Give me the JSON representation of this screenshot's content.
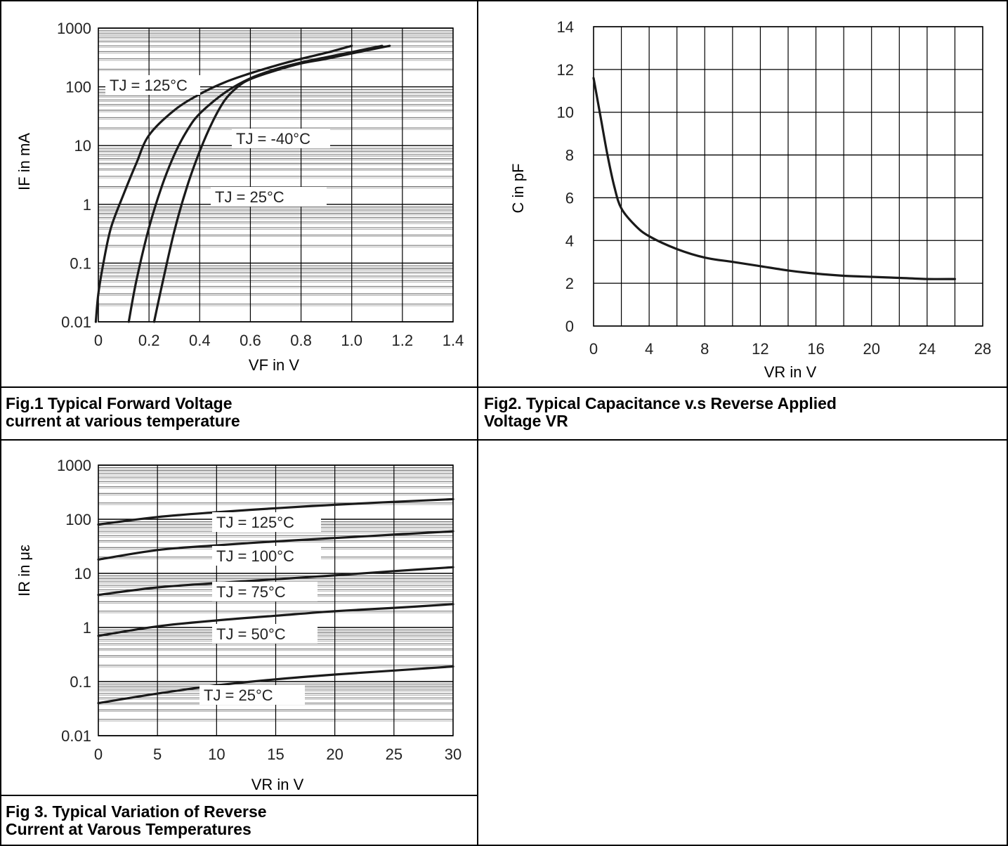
{
  "captions": {
    "fig1": "Fig.1 Typical Forward Voltage\ncurrent at various temperature",
    "fig2": "Fig2. Typical Capacitance v.s Reverse Applied\nVoltage VR",
    "fig3": "Fig 3. Typical Variation of Reverse\nCurrent at Varous Temperatures"
  },
  "chart_data": [
    {
      "type": "line",
      "title": "",
      "xlabel": "VF in V",
      "ylabel": "IF in mA",
      "xlim": [
        0,
        1.4
      ],
      "ylim": [
        0.01,
        1000
      ],
      "yscale": "log",
      "grid": true,
      "xticks": [
        "0",
        "0.2",
        "0.4",
        "0.6",
        "0.8",
        "1.0",
        "1.2",
        "1.4"
      ],
      "yticks": [
        "0.01",
        "0.1",
        "1",
        "10",
        "100",
        "1000"
      ],
      "annotations": [
        "TJ = 125°C",
        "TJ = -40°C",
        "TJ = 25°C"
      ],
      "series": [
        {
          "name": "TJ = 125°C",
          "x": [
            -0.01,
            0.0,
            0.02,
            0.05,
            0.1,
            0.15,
            0.2,
            0.3,
            0.4,
            0.5,
            0.6,
            0.7,
            0.8,
            0.9,
            1.0
          ],
          "y": [
            0.01,
            0.03,
            0.1,
            0.4,
            1.5,
            5,
            15,
            40,
            75,
            120,
            170,
            230,
            300,
            380,
            500
          ]
        },
        {
          "name": "TJ = 25°C",
          "x": [
            0.12,
            0.15,
            0.2,
            0.25,
            0.3,
            0.35,
            0.4,
            0.5,
            0.6,
            0.7,
            0.8,
            0.9,
            1.0,
            1.12
          ],
          "y": [
            0.01,
            0.05,
            0.4,
            2,
            7,
            18,
            35,
            80,
            140,
            200,
            260,
            320,
            390,
            500
          ]
        },
        {
          "name": "TJ = -40°C",
          "x": [
            0.22,
            0.25,
            0.3,
            0.35,
            0.4,
            0.45,
            0.5,
            0.55,
            0.6,
            0.7,
            0.8,
            0.9,
            1.0,
            1.15
          ],
          "y": [
            0.01,
            0.04,
            0.35,
            2,
            8,
            25,
            60,
            100,
            135,
            190,
            250,
            300,
            370,
            500
          ]
        }
      ]
    },
    {
      "type": "line",
      "title": "",
      "xlabel": "VR  in V",
      "ylabel": "C in pF",
      "xlim": [
        0,
        28
      ],
      "ylim": [
        0,
        14
      ],
      "grid": true,
      "xticks": [
        "0",
        "4",
        "8",
        "12",
        "16",
        "20",
        "24",
        "28"
      ],
      "yticks": [
        "0",
        "2",
        "4",
        "6",
        "8",
        "10",
        "12",
        "14"
      ],
      "series": [
        {
          "x": [
            0,
            0.5,
            1,
            1.5,
            2,
            3,
            4,
            6,
            8,
            10,
            12,
            14,
            16,
            18,
            20,
            22,
            24,
            26
          ],
          "y": [
            11.6,
            9.8,
            8.0,
            6.5,
            5.5,
            4.7,
            4.2,
            3.6,
            3.2,
            3.0,
            2.8,
            2.6,
            2.45,
            2.35,
            2.3,
            2.25,
            2.2,
            2.2
          ]
        }
      ]
    },
    {
      "type": "line",
      "title": "",
      "xlabel": "VR in V",
      "ylabel": "IR in με",
      "xlim": [
        0,
        30
      ],
      "ylim": [
        0.01,
        1000
      ],
      "yscale": "log",
      "grid": true,
      "xticks": [
        "0",
        "5",
        "10",
        "15",
        "20",
        "25",
        "30"
      ],
      "yticks": [
        "0.01",
        "0.1",
        "1",
        "10",
        "100",
        "1000"
      ],
      "annotations": [
        "TJ = 125°C",
        "TJ = 100°C",
        "TJ = 75°C",
        "TJ = 50°C",
        "TJ = 25°C"
      ],
      "series": [
        {
          "name": "TJ = 125°C",
          "x": [
            0,
            5,
            10,
            15,
            20,
            25,
            30
          ],
          "y": [
            80,
            110,
            135,
            160,
            185,
            210,
            235
          ]
        },
        {
          "name": "TJ = 100°C",
          "x": [
            0,
            5,
            10,
            15,
            20,
            25,
            30
          ],
          "y": [
            18,
            27,
            33,
            39,
            45,
            52,
            60
          ]
        },
        {
          "name": "TJ = 75°C",
          "x": [
            0,
            5,
            10,
            15,
            20,
            25,
            30
          ],
          "y": [
            4,
            5.5,
            6.6,
            7.8,
            9.2,
            11,
            13
          ]
        },
        {
          "name": "TJ = 50°C",
          "x": [
            0,
            5,
            10,
            15,
            20,
            25,
            30
          ],
          "y": [
            0.7,
            1.05,
            1.35,
            1.65,
            2.0,
            2.3,
            2.7
          ]
        },
        {
          "name": "TJ = 25°C",
          "x": [
            0,
            5,
            10,
            15,
            20,
            25,
            30
          ],
          "y": [
            0.04,
            0.06,
            0.085,
            0.11,
            0.135,
            0.16,
            0.19
          ]
        }
      ]
    }
  ]
}
